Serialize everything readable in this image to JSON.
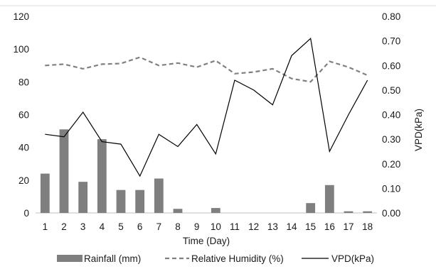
{
  "chart_data": {
    "type": "bar+line",
    "title": "",
    "xlabel": "Time (Day)",
    "ylabel_left": "",
    "ylabel_right": "VPD(kPa)",
    "categories": [
      "1",
      "2",
      "3",
      "4",
      "5",
      "6",
      "7",
      "8",
      "9",
      "10",
      "11",
      "12",
      "13",
      "14",
      "15",
      "16",
      "17",
      "18"
    ],
    "left_axis": {
      "min": 0,
      "max": 120,
      "step": 20,
      "ticks": [
        "0",
        "20",
        "40",
        "60",
        "80",
        "100",
        "120"
      ]
    },
    "right_axis": {
      "min": 0,
      "max": 0.8,
      "step": 0.1,
      "ticks": [
        "0.00",
        "0.10",
        "0.20",
        "0.30",
        "0.40",
        "0.50",
        "0.60",
        "0.70",
        "0.80"
      ]
    },
    "series": [
      {
        "name": "Rainfall (mm)",
        "type": "bar",
        "axis": "left",
        "color": "#7f7f7f",
        "values": [
          24,
          51,
          19,
          45,
          14,
          14,
          21,
          2.5,
          0,
          3,
          0,
          0,
          0,
          0,
          6,
          17,
          1,
          1
        ]
      },
      {
        "name": "Relative Humidity (%)",
        "type": "line",
        "style": "dashed",
        "axis": "left",
        "color": "#808080",
        "values": [
          90,
          90.8,
          88,
          90.8,
          91.2,
          95,
          90,
          91.5,
          89,
          93,
          85,
          86,
          88,
          82,
          80,
          92.5,
          89,
          84
        ]
      },
      {
        "name": "VPD(kPa)",
        "type": "line",
        "style": "solid",
        "axis": "right",
        "color": "#000000",
        "values": [
          0.32,
          0.31,
          0.41,
          0.29,
          0.28,
          0.15,
          0.32,
          0.27,
          0.36,
          0.24,
          0.54,
          0.5,
          0.44,
          0.64,
          0.71,
          0.25,
          0.4,
          0.54
        ]
      }
    ],
    "grid": false,
    "legend_position": "bottom"
  }
}
